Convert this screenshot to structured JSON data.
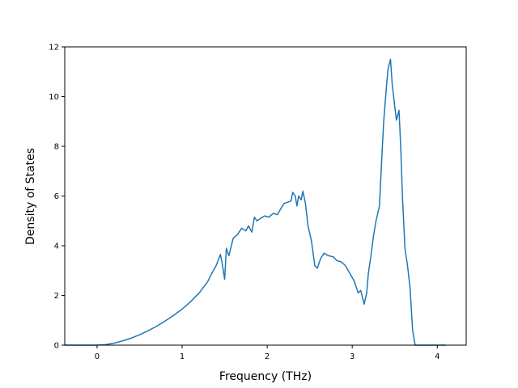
{
  "colors": {
    "line": "#1f77b4",
    "axes": "#000000",
    "background": "#ffffff"
  },
  "chart_data": {
    "type": "line",
    "title": "",
    "xlabel": "Frequency (THz)",
    "ylabel": "Density of States",
    "xlim": [
      -0.38,
      4.34
    ],
    "ylim": [
      0,
      12
    ],
    "xticks": [
      0,
      1,
      2,
      3,
      4
    ],
    "yticks": [
      0,
      2,
      4,
      6,
      8,
      10,
      12
    ],
    "grid": false,
    "legend": "none",
    "series": [
      {
        "x": [
          -0.38,
          -0.2,
          0,
          0.1,
          0.2,
          0.3,
          0.4,
          0.5,
          0.6,
          0.7,
          0.8,
          0.9,
          1.0,
          1.1,
          1.2,
          1.3,
          1.35,
          1.4,
          1.45,
          1.47,
          1.5,
          1.52,
          1.55,
          1.6,
          1.65,
          1.7,
          1.75,
          1.78,
          1.82,
          1.85,
          1.88,
          1.92,
          1.97,
          2.02,
          2.07,
          2.12,
          2.17,
          2.2,
          2.24,
          2.28,
          2.3,
          2.33,
          2.35,
          2.37,
          2.4,
          2.42,
          2.45,
          2.48,
          2.52,
          2.56,
          2.59,
          2.63,
          2.67,
          2.72,
          2.78,
          2.82,
          2.87,
          2.92,
          2.97,
          3.02,
          3.07,
          3.1,
          3.14,
          3.17,
          3.19,
          3.22,
          3.25,
          3.28,
          3.32,
          3.35,
          3.37,
          3.4,
          3.42,
          3.45,
          3.47,
          3.5,
          3.52,
          3.55,
          3.57,
          3.59,
          3.62,
          3.65,
          3.68,
          3.71,
          3.74,
          3.8,
          4.1
        ],
        "y": [
          0,
          0,
          0,
          0.02,
          0.08,
          0.17,
          0.28,
          0.42,
          0.58,
          0.76,
          0.97,
          1.2,
          1.45,
          1.75,
          2.1,
          2.55,
          2.9,
          3.2,
          3.65,
          3.3,
          2.65,
          3.9,
          3.6,
          4.3,
          4.45,
          4.7,
          4.6,
          4.8,
          4.55,
          5.15,
          5.0,
          5.1,
          5.2,
          5.15,
          5.3,
          5.25,
          5.55,
          5.7,
          5.75,
          5.8,
          6.15,
          6.0,
          5.6,
          6.0,
          5.85,
          6.2,
          5.7,
          4.8,
          4.2,
          3.2,
          3.1,
          3.5,
          3.7,
          3.6,
          3.55,
          3.4,
          3.35,
          3.2,
          2.9,
          2.6,
          2.1,
          2.2,
          1.65,
          2.1,
          2.9,
          3.6,
          4.4,
          5.0,
          5.6,
          7.7,
          9.0,
          10.3,
          11.1,
          11.5,
          10.5,
          9.6,
          9.05,
          9.45,
          8.0,
          6.0,
          3.9,
          3.2,
          2.3,
          0.6,
          0,
          0,
          0
        ]
      }
    ]
  }
}
